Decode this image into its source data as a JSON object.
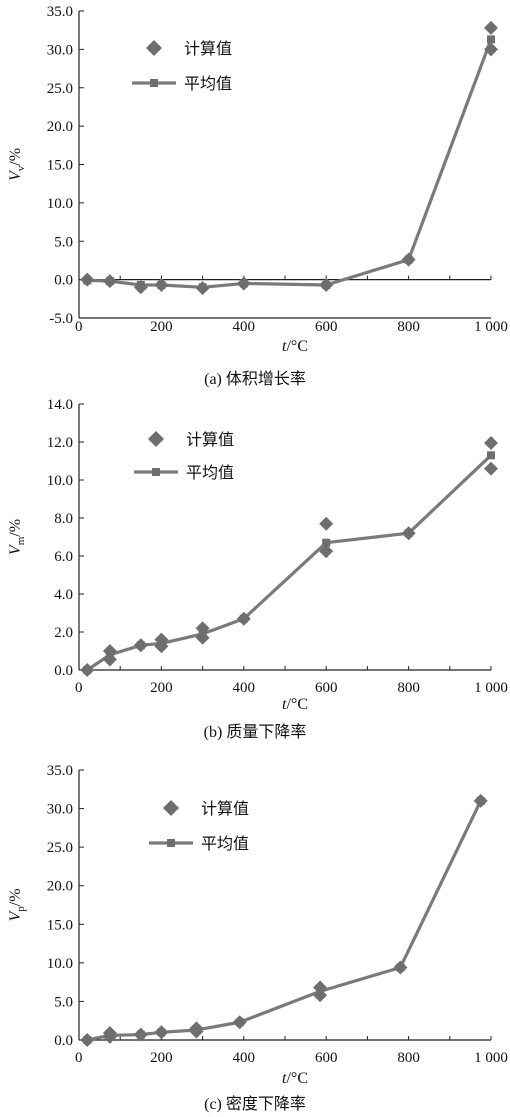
{
  "chart_data": [
    {
      "type": "line",
      "caption": "(a) 体积增长率",
      "xlabel": {
        "var": "t",
        "unit": "/°C"
      },
      "ylabel": {
        "var": "V",
        "sub": "v",
        "unit": "/%"
      },
      "xlim": [
        0,
        1000
      ],
      "ylim": [
        -5,
        35
      ],
      "xticks": [
        0,
        200,
        400,
        600,
        800,
        1000
      ],
      "xtick_labels": [
        "0",
        "200",
        "400",
        "600",
        "800",
        "1 000"
      ],
      "yticks": [
        -5,
        0,
        5,
        10,
        15,
        20,
        25,
        30,
        35
      ],
      "ytick_labels": [
        "-5.0",
        "0.0",
        "5.0",
        "10.0",
        "15.0",
        "20.0",
        "25.0",
        "30.0",
        "35.0"
      ],
      "legend": {
        "position": "top-left",
        "scatter_label": "计算值",
        "line_label": "平均值"
      },
      "series": [
        {
          "name": "计算值",
          "kind": "scatter",
          "x": [
            20,
            75,
            150,
            200,
            300,
            400,
            600,
            800,
            1000,
            1000
          ],
          "y": [
            0.0,
            -0.2,
            -1.0,
            -0.7,
            -1.1,
            -0.5,
            -0.7,
            2.6,
            30.0,
            32.8
          ]
        },
        {
          "name": "平均值",
          "kind": "line",
          "x": [
            20,
            75,
            150,
            200,
            300,
            400,
            600,
            800,
            1000
          ],
          "y": [
            -0.1,
            -0.2,
            -0.7,
            -0.7,
            -1.0,
            -0.5,
            -0.7,
            2.6,
            31.3
          ]
        }
      ]
    },
    {
      "type": "line",
      "caption": "(b) 质量下降率",
      "xlabel": {
        "var": "t",
        "unit": "/°C"
      },
      "ylabel": {
        "var": "V",
        "sub": "m",
        "unit": "/%"
      },
      "xlim": [
        0,
        1000
      ],
      "ylim": [
        0,
        14
      ],
      "xticks": [
        0,
        200,
        400,
        600,
        800,
        1000
      ],
      "xtick_labels": [
        "0",
        "200",
        "400",
        "600",
        "800",
        "1 000"
      ],
      "yticks": [
        0,
        2,
        4,
        6,
        8,
        10,
        12,
        14
      ],
      "ytick_labels": [
        "0.0",
        "2.0",
        "4.0",
        "6.0",
        "8.0",
        "10.0",
        "12.0",
        "14.0"
      ],
      "legend": {
        "position": "top-left",
        "scatter_label": "计算值",
        "line_label": "平均值"
      },
      "series": [
        {
          "name": "计算值",
          "kind": "scatter",
          "x": [
            20,
            75,
            75,
            150,
            200,
            200,
            300,
            300,
            400,
            600,
            600,
            800,
            1000,
            1000
          ],
          "y": [
            0.0,
            0.55,
            1.0,
            1.3,
            1.25,
            1.6,
            1.7,
            2.2,
            2.7,
            6.25,
            7.7,
            7.2,
            10.6,
            11.95
          ]
        },
        {
          "name": "平均值",
          "kind": "line",
          "x": [
            20,
            75,
            150,
            200,
            300,
            400,
            600,
            800,
            1000
          ],
          "y": [
            0.0,
            0.8,
            1.3,
            1.4,
            1.9,
            2.7,
            6.7,
            7.2,
            11.3
          ]
        }
      ]
    },
    {
      "type": "line",
      "caption": "(c) 密度下降率",
      "xlabel": {
        "var": "t",
        "unit": "/°C"
      },
      "ylabel": {
        "var": "V",
        "sub": "p",
        "unit": "/%"
      },
      "xlim": [
        0,
        1000
      ],
      "ylim": [
        0,
        35
      ],
      "xticks": [
        0,
        200,
        400,
        600,
        800,
        1000
      ],
      "xtick_labels": [
        "0",
        "200",
        "400",
        "600",
        "800",
        "1 000"
      ],
      "yticks": [
        0,
        5,
        10,
        15,
        20,
        25,
        30,
        35
      ],
      "ytick_labels": [
        "0.0",
        "5.0",
        "10.0",
        "15.0",
        "20.0",
        "25.0",
        "30.0",
        "35.0"
      ],
      "legend": {
        "position": "top-left",
        "scatter_label": "计算值",
        "line_label": "平均值"
      },
      "series": [
        {
          "name": "计算值",
          "kind": "scatter",
          "x": [
            20,
            75,
            75,
            150,
            200,
            285,
            285,
            390,
            585,
            585,
            780,
            975
          ],
          "y": [
            0.0,
            0.4,
            0.9,
            0.7,
            1.0,
            1.1,
            1.5,
            2.3,
            5.8,
            6.8,
            9.4,
            31.0
          ]
        },
        {
          "name": "平均值",
          "kind": "line",
          "x": [
            20,
            75,
            150,
            200,
            285,
            390,
            585,
            780,
            975
          ],
          "y": [
            0.0,
            0.6,
            0.7,
            1.0,
            1.3,
            2.3,
            6.3,
            9.4,
            31.0
          ]
        }
      ]
    }
  ]
}
